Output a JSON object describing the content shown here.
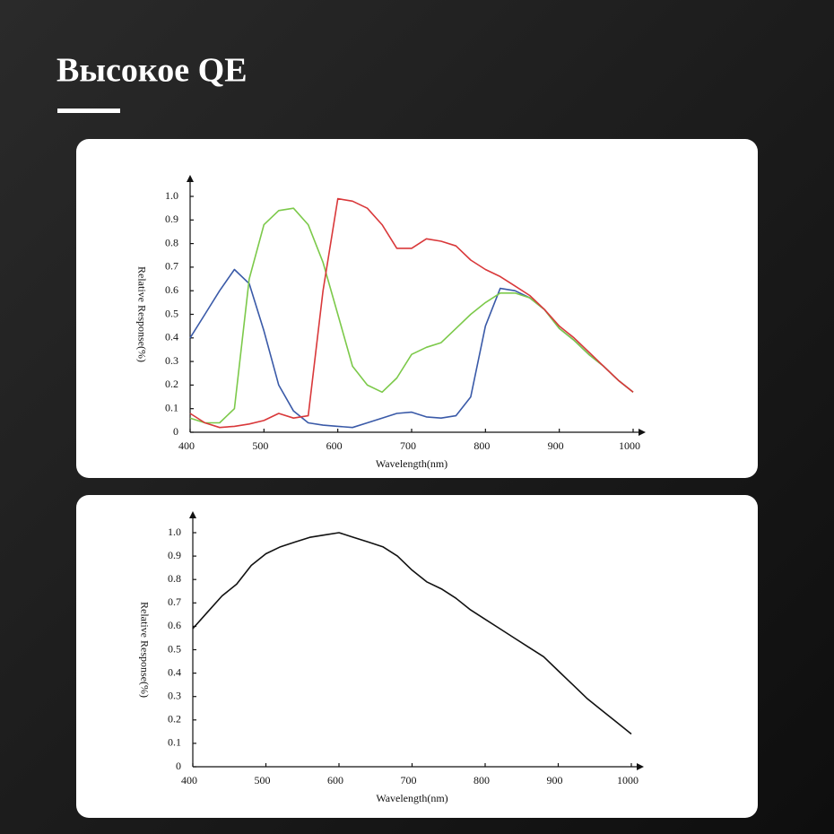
{
  "header": {
    "title": "Высокое QE"
  },
  "chart_data": [
    {
      "type": "line",
      "xlabel": "Wavelength(nm)",
      "ylabel": "Relative Response(%)",
      "x": [
        400,
        420,
        440,
        460,
        480,
        500,
        520,
        540,
        560,
        580,
        600,
        620,
        640,
        660,
        680,
        700,
        720,
        740,
        760,
        780,
        800,
        820,
        840,
        860,
        880,
        900,
        920,
        940,
        960,
        980,
        1000
      ],
      "series": [
        {
          "color": "#3a5aa8",
          "values": [
            0.4,
            0.5,
            0.6,
            0.69,
            0.63,
            0.43,
            0.2,
            0.09,
            0.04,
            0.03,
            0.025,
            0.02,
            0.04,
            0.06,
            0.08,
            0.085,
            0.065,
            0.06,
            0.07,
            0.15,
            0.45,
            0.61,
            0.6,
            0.57,
            0.52,
            0.44,
            0.39,
            0.33,
            0.28,
            0.22,
            0.17
          ]
        },
        {
          "color": "#7cc94a",
          "values": [
            0.06,
            0.04,
            0.04,
            0.1,
            0.65,
            0.88,
            0.94,
            0.95,
            0.88,
            0.72,
            0.5,
            0.28,
            0.2,
            0.17,
            0.23,
            0.33,
            0.36,
            0.38,
            0.44,
            0.5,
            0.55,
            0.59,
            0.59,
            0.57,
            0.52,
            0.44,
            0.39,
            0.33,
            0.28,
            0.22,
            0.17
          ]
        },
        {
          "color": "#d9383a",
          "values": [
            0.08,
            0.04,
            0.02,
            0.025,
            0.035,
            0.05,
            0.08,
            0.06,
            0.07,
            0.6,
            0.99,
            0.98,
            0.95,
            0.88,
            0.78,
            0.78,
            0.82,
            0.81,
            0.79,
            0.73,
            0.69,
            0.66,
            0.62,
            0.58,
            0.52,
            0.45,
            0.4,
            0.34,
            0.28,
            0.22,
            0.17
          ]
        }
      ],
      "xlim": [
        400,
        1000
      ],
      "xticks": [
        400,
        500,
        600,
        700,
        800,
        900,
        1000
      ],
      "ylim": [
        0,
        1
      ],
      "yticks": [
        0,
        0.1,
        0.2,
        0.3,
        0.4,
        0.5,
        0.6,
        0.7,
        0.8,
        0.9,
        {
          "value": 1,
          "label": "1.0"
        }
      ]
    },
    {
      "type": "line",
      "xlabel": "Wavelength(nm)",
      "ylabel": "Relative Response(%)",
      "x": [
        400,
        420,
        440,
        460,
        480,
        500,
        520,
        540,
        560,
        580,
        600,
        620,
        640,
        660,
        680,
        700,
        720,
        740,
        760,
        780,
        800,
        820,
        840,
        860,
        880,
        900,
        920,
        940,
        960,
        980,
        1000
      ],
      "series": [
        {
          "color": "#111111",
          "values": [
            0.59,
            0.66,
            0.73,
            0.78,
            0.86,
            0.91,
            0.94,
            0.96,
            0.98,
            0.99,
            1.0,
            0.98,
            0.96,
            0.94,
            0.9,
            0.84,
            0.79,
            0.76,
            0.72,
            0.67,
            0.63,
            0.59,
            0.55,
            0.51,
            0.47,
            0.41,
            0.35,
            0.29,
            0.24,
            0.19,
            0.14
          ]
        }
      ],
      "xlim": [
        400,
        1000
      ],
      "xticks": [
        400,
        500,
        600,
        700,
        800,
        900,
        1000
      ],
      "ylim": [
        0,
        1
      ],
      "yticks": [
        0,
        0.1,
        0.2,
        0.3,
        0.4,
        0.5,
        0.6,
        0.7,
        0.8,
        0.9,
        {
          "value": 1,
          "label": "1.0"
        }
      ]
    }
  ]
}
